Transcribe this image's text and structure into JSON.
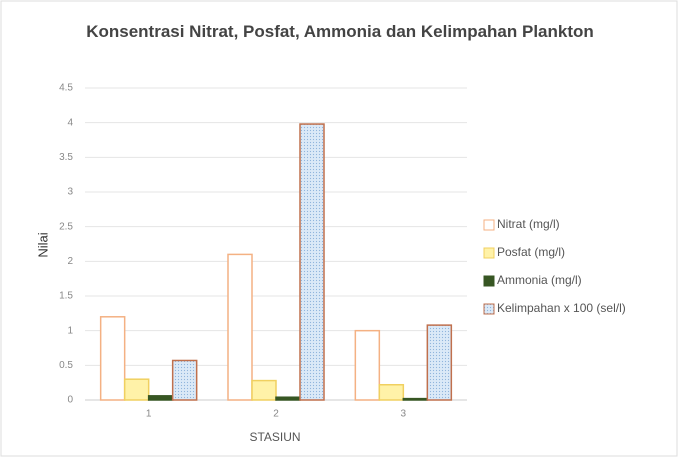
{
  "chart_data": {
    "type": "bar",
    "title": "Konsentrasi Nitrat, Posfat, Ammonia dan Kelimpahan Plankton",
    "xlabel": "STASIUN",
    "ylabel": "Nilai",
    "categories": [
      "1",
      "2",
      "3"
    ],
    "series": [
      {
        "name": "Nitrat (mg/l)",
        "color": "#ffffff",
        "edgecolor": "#f4b183",
        "values": [
          1.2,
          2.1,
          1.0
        ]
      },
      {
        "name": "Posfat (mg/l)",
        "color": "#fff2a8",
        "edgecolor": "#f0d060",
        "values": [
          0.3,
          0.28,
          0.22
        ]
      },
      {
        "name": "Ammonia (mg/l)",
        "color": "#375623",
        "edgecolor": "#375623",
        "values": [
          0.06,
          0.04,
          0.02
        ]
      },
      {
        "name": "Kelimpahan x 100 (sel/l)",
        "color": "#dbe9f7",
        "edgecolor": "#c0704d",
        "values": [
          0.57,
          3.98,
          1.08
        ]
      }
    ],
    "ylim": [
      0,
      4.5
    ],
    "yticks": [
      0,
      0.5,
      1,
      1.5,
      2,
      2.5,
      3,
      3.5,
      4,
      4.5
    ],
    "grid": true,
    "legend": "right"
  }
}
